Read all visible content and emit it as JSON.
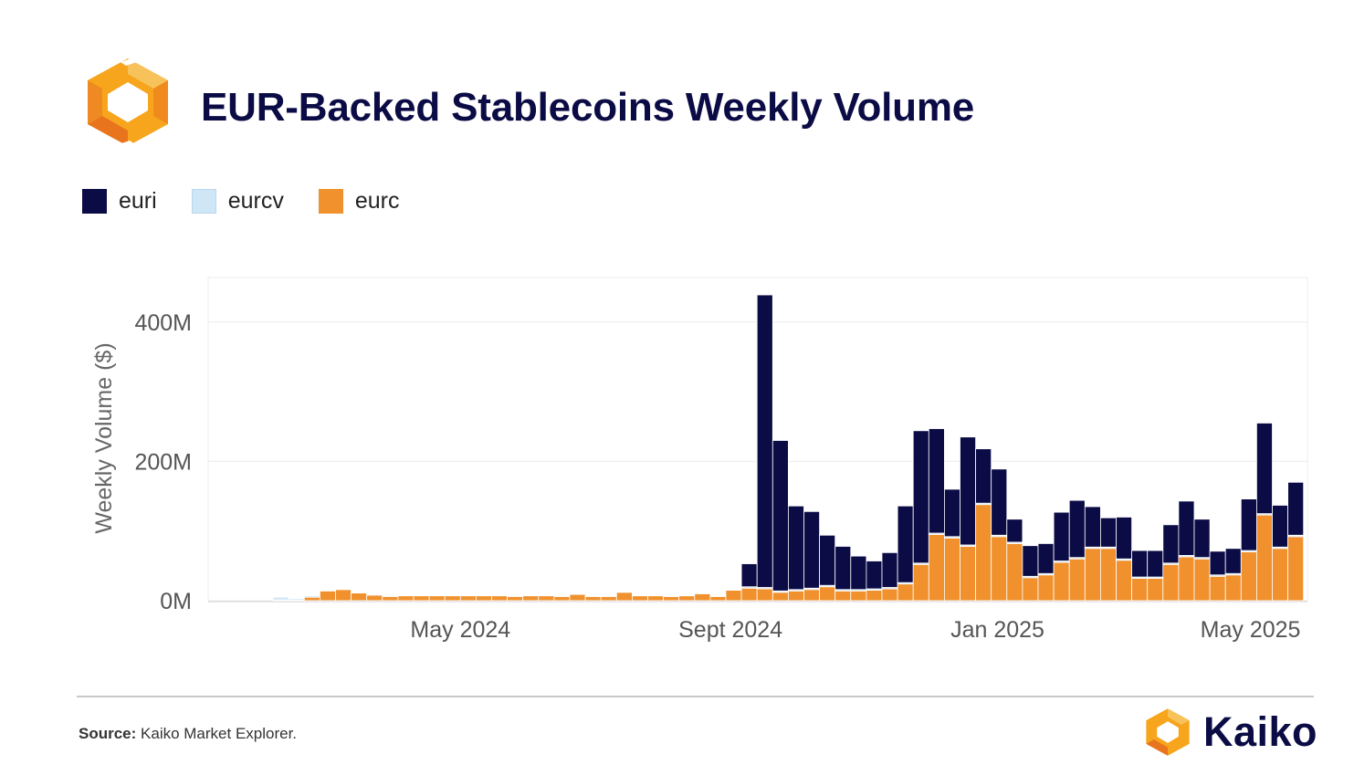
{
  "header": {
    "title": "EUR-Backed Stablecoins Weekly Volume"
  },
  "legend": [
    {
      "name": "euri",
      "color": "#0b0b45"
    },
    {
      "name": "eurcv",
      "color": "#cfe6f7"
    },
    {
      "name": "eurc",
      "color": "#f0912e"
    }
  ],
  "chart_data": {
    "type": "bar",
    "stacked": true,
    "ylabel": "Weekly Volume ($)",
    "xlabel": "",
    "ylim": [
      0,
      460
    ],
    "y_unit": "M USD",
    "y_ticks": [
      {
        "value": 0,
        "label": "0M"
      },
      {
        "value": 200,
        "label": "200M"
      },
      {
        "value": 400,
        "label": "400M"
      }
    ],
    "x_ticks": [
      {
        "index": 12.5,
        "label": "May 2024"
      },
      {
        "index": 29.8,
        "label": "Sept 2024"
      },
      {
        "index": 46.9,
        "label": "Jan 2025"
      },
      {
        "index": 63.1,
        "label": "May 2025"
      }
    ],
    "series": [
      {
        "name": "eurc",
        "color": "#f0912e",
        "values": [
          0,
          1,
          1,
          5,
          14,
          16,
          11,
          8,
          6,
          7,
          7,
          7,
          7,
          7,
          7,
          7,
          6,
          7,
          7,
          6,
          9,
          6,
          6,
          12,
          7,
          7,
          6,
          7,
          10,
          6,
          15,
          18,
          17,
          12,
          14,
          16,
          20,
          14,
          14,
          15,
          17,
          24,
          52,
          95,
          90,
          78,
          138,
          92,
          82,
          33,
          37,
          55,
          60,
          75,
          75,
          58,
          32,
          32,
          52,
          63,
          60,
          35,
          37,
          70,
          123,
          75,
          92
        ]
      },
      {
        "name": "eurcv",
        "color": "#cfe6f7",
        "values": [
          0,
          4,
          2,
          2,
          1,
          1,
          1,
          1,
          1,
          1,
          1,
          1,
          1,
          1,
          1,
          1,
          1,
          1,
          1,
          1,
          1,
          1,
          1,
          1,
          1,
          1,
          1,
          1,
          1,
          1,
          1,
          2,
          2,
          2,
          2,
          2,
          2,
          2,
          2,
          2,
          2,
          2,
          2,
          2,
          2,
          2,
          2,
          2,
          2,
          2,
          2,
          2,
          2,
          2,
          2,
          2,
          2,
          2,
          2,
          2,
          2,
          2,
          2,
          2,
          2,
          2,
          2
        ]
      },
      {
        "name": "euri",
        "color": "#0b0b45",
        "values": [
          0,
          0,
          0,
          0,
          0,
          0,
          0,
          0,
          0,
          0,
          0,
          0,
          0,
          0,
          0,
          0,
          0,
          0,
          0,
          0,
          0,
          0,
          0,
          0,
          0,
          0,
          0,
          0,
          0,
          0,
          0,
          33,
          420,
          216,
          120,
          110,
          72,
          62,
          48,
          40,
          50,
          110,
          190,
          150,
          68,
          155,
          78,
          95,
          33,
          44,
          43,
          70,
          82,
          58,
          42,
          60,
          38,
          38,
          55,
          78,
          55,
          34,
          36,
          74,
          130,
          60,
          76
        ]
      }
    ]
  },
  "footer": {
    "source_label": "Source:",
    "source_text": " Kaiko Market Explorer.",
    "brand_name": "Kaiko"
  }
}
